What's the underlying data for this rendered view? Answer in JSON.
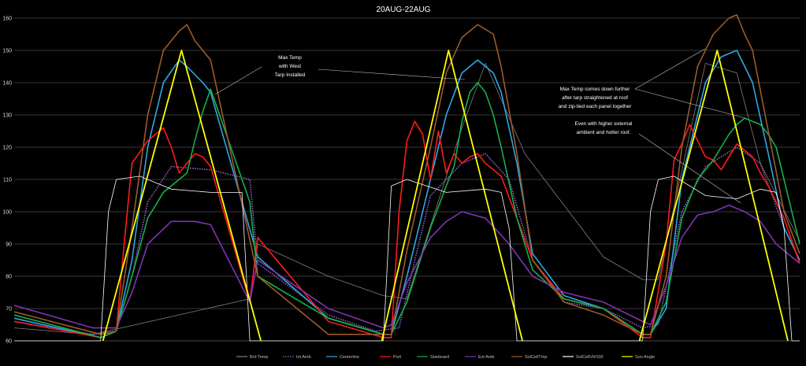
{
  "chart_data": {
    "type": "line",
    "title": "20AUG-22AUG",
    "xlabel": "",
    "ylabel": "",
    "ylim": [
      60,
      160
    ],
    "yticks": [
      60,
      70,
      80,
      90,
      100,
      110,
      120,
      130,
      140,
      150,
      160
    ],
    "grid": "horizontal",
    "legend_position": "bottom",
    "x_domain": [
      0,
      100
    ],
    "series": [
      {
        "name": "Brd Temp",
        "color": "#7f7f7f",
        "style": "solid",
        "x": [
          0,
          10,
          30,
          31,
          40,
          47,
          50,
          57,
          60,
          65,
          75,
          80,
          82,
          86,
          88,
          92,
          95,
          100
        ],
        "y": [
          64,
          62,
          73,
          90,
          80,
          74,
          73,
          126,
          146,
          118,
          86,
          79,
          79,
          124,
          146,
          143,
          115,
          91
        ]
      },
      {
        "name": "Int Amb",
        "color": "#9966cc",
        "style": "dotted",
        "x": [
          0,
          10,
          13,
          15,
          17,
          20,
          25,
          30,
          31,
          40,
          46,
          49,
          51,
          53,
          57,
          60,
          63,
          66,
          70,
          75,
          80,
          82,
          85,
          88,
          92,
          95,
          98,
          100
        ],
        "y": [
          66,
          62,
          63,
          80,
          103,
          114,
          113,
          110,
          84,
          68,
          63,
          64,
          85,
          105,
          115,
          118,
          110,
          85,
          72,
          70,
          64,
          65,
          100,
          114,
          120,
          115,
          95,
          85
        ]
      },
      {
        "name": "Centerline",
        "color": "#2ea8e0",
        "style": "solid",
        "x": [
          0,
          11,
          13,
          15,
          17,
          19,
          21,
          22,
          24,
          25,
          31,
          40,
          47,
          48,
          50,
          53,
          55,
          57,
          59,
          61,
          62,
          64,
          66,
          70,
          75,
          80,
          81,
          83,
          85,
          88,
          90,
          92,
          94,
          96,
          98,
          100
        ],
        "y": [
          67,
          61,
          63,
          85,
          120,
          140,
          147,
          145,
          140,
          137,
          86,
          67,
          62,
          62,
          80,
          110,
          130,
          143,
          147,
          143,
          137,
          115,
          87,
          74,
          70,
          62,
          62,
          70,
          110,
          140,
          148,
          150,
          140,
          118,
          95,
          85
        ]
      },
      {
        "name": "Port",
        "color": "#ff1a1a",
        "style": "solid",
        "x": [
          0,
          11,
          13,
          14,
          15,
          17,
          19,
          20,
          21,
          22,
          23,
          24,
          25,
          30,
          31,
          40,
          47,
          48,
          49,
          50,
          51,
          52,
          53,
          54,
          55,
          56,
          57,
          58,
          59,
          60,
          61,
          62,
          64,
          66,
          70,
          75,
          80,
          81,
          83,
          84,
          85,
          86,
          87,
          88,
          89,
          90,
          91,
          92,
          93,
          94,
          95,
          96,
          98,
          100
        ],
        "y": [
          66,
          61,
          63,
          90,
          115,
          122,
          126,
          120,
          112,
          115,
          118,
          117,
          114,
          72,
          92,
          66,
          61,
          61,
          100,
          122,
          128,
          124,
          110,
          125,
          112,
          118,
          115,
          117,
          118,
          115,
          113,
          111,
          98,
          85,
          73,
          70,
          61,
          61,
          90,
          116,
          121,
          127,
          122,
          117,
          116,
          113,
          117,
          121,
          119,
          117,
          112,
          108,
          98,
          84
        ]
      },
      {
        "name": "Starboard",
        "color": "#14b04a",
        "style": "solid",
        "x": [
          0,
          11,
          13,
          15,
          17,
          19,
          21,
          22,
          23,
          24,
          25,
          30,
          31,
          40,
          47,
          48,
          50,
          53,
          55,
          56,
          57,
          58,
          59,
          60,
          61,
          62,
          64,
          66,
          70,
          75,
          80,
          81,
          83,
          85,
          87,
          89,
          90,
          91,
          92,
          93,
          94,
          95,
          96,
          97,
          98,
          100
        ],
        "y": [
          68,
          61,
          63,
          80,
          98,
          106,
          110,
          112,
          122,
          131,
          138,
          103,
          80,
          67,
          62,
          62,
          72,
          95,
          108,
          114,
          128,
          137,
          140,
          137,
          130,
          120,
          98,
          82,
          73,
          70,
          62,
          62,
          72,
          98,
          110,
          116,
          120,
          124,
          127,
          129,
          128,
          127,
          124,
          120,
          110,
          90
        ]
      },
      {
        "name": "Ext Amb",
        "color": "#8033b3",
        "style": "solid",
        "x": [
          0,
          10,
          13,
          15,
          17,
          20,
          23,
          25,
          30,
          31,
          40,
          47,
          48,
          50,
          53,
          55,
          57,
          60,
          63,
          66,
          70,
          75,
          80,
          81,
          83,
          85,
          87,
          89,
          91,
          93,
          95,
          97,
          100
        ],
        "y": [
          71,
          64,
          64,
          75,
          90,
          97,
          97,
          96,
          72,
          85,
          70,
          64,
          65,
          78,
          92,
          97,
          100,
          98,
          90,
          80,
          75,
          72,
          66,
          65,
          77,
          92,
          99,
          100,
          102,
          100,
          97,
          90,
          84
        ]
      },
      {
        "name": "SolCellTmp",
        "color": "#9c5a2a",
        "style": "solid",
        "x": [
          0,
          11,
          13,
          15,
          17,
          19,
          21,
          22,
          23,
          24,
          25,
          31,
          40,
          47,
          48,
          50,
          53,
          55,
          57,
          59,
          61,
          62,
          64,
          66,
          70,
          75,
          80,
          81,
          83,
          85,
          87,
          89,
          91,
          92,
          93,
          94,
          96,
          98,
          100
        ],
        "y": [
          69,
          62,
          63,
          95,
          130,
          150,
          156,
          158,
          153,
          150,
          147,
          80,
          62,
          62,
          62,
          88,
          120,
          143,
          154,
          158,
          155,
          145,
          118,
          85,
          72,
          68,
          62,
          62,
          80,
          120,
          145,
          155,
          160,
          161,
          155,
          150,
          125,
          100,
          87
        ]
      },
      {
        "name": "SolCellVlt/100",
        "color": "#ffffff",
        "style": "solid",
        "x": [
          0,
          11,
          12,
          13,
          16,
          20,
          25,
          29,
          30,
          31,
          46,
          47,
          48,
          50,
          55,
          60,
          62,
          63,
          64,
          65,
          80,
          81,
          82,
          84,
          88,
          92,
          95,
          97,
          98,
          99,
          100
        ],
        "y": [
          60,
          60,
          100,
          110,
          111,
          107,
          106,
          106,
          60,
          60,
          60,
          60,
          108,
          110,
          106,
          107,
          106,
          95,
          60,
          60,
          60,
          100,
          110,
          111,
          105,
          104,
          107,
          106,
          95,
          60,
          60
        ]
      },
      {
        "name": "Sun Angle",
        "color": "#ffff00",
        "style": "solid",
        "x": [
          0,
          11.3,
          21.3,
          31.4,
          36,
          46.8,
          55.3,
          64.7,
          69,
          79.6,
          89.5,
          98.5
        ],
        "y": [
          null,
          60,
          150,
          60,
          null,
          60,
          150,
          60,
          null,
          60,
          150,
          60
        ]
      }
    ],
    "annotations": [
      {
        "lines": [
          "Max Temp",
          "with West",
          "Tarp Installed"
        ]
      },
      {
        "lines": [
          "Max Temp comes down further",
          "after tarp straightened at roof",
          "and zip-tied each panel together"
        ]
      },
      {
        "lines": [
          "Even with higher external",
          "ambient and hotter roof."
        ]
      }
    ]
  }
}
